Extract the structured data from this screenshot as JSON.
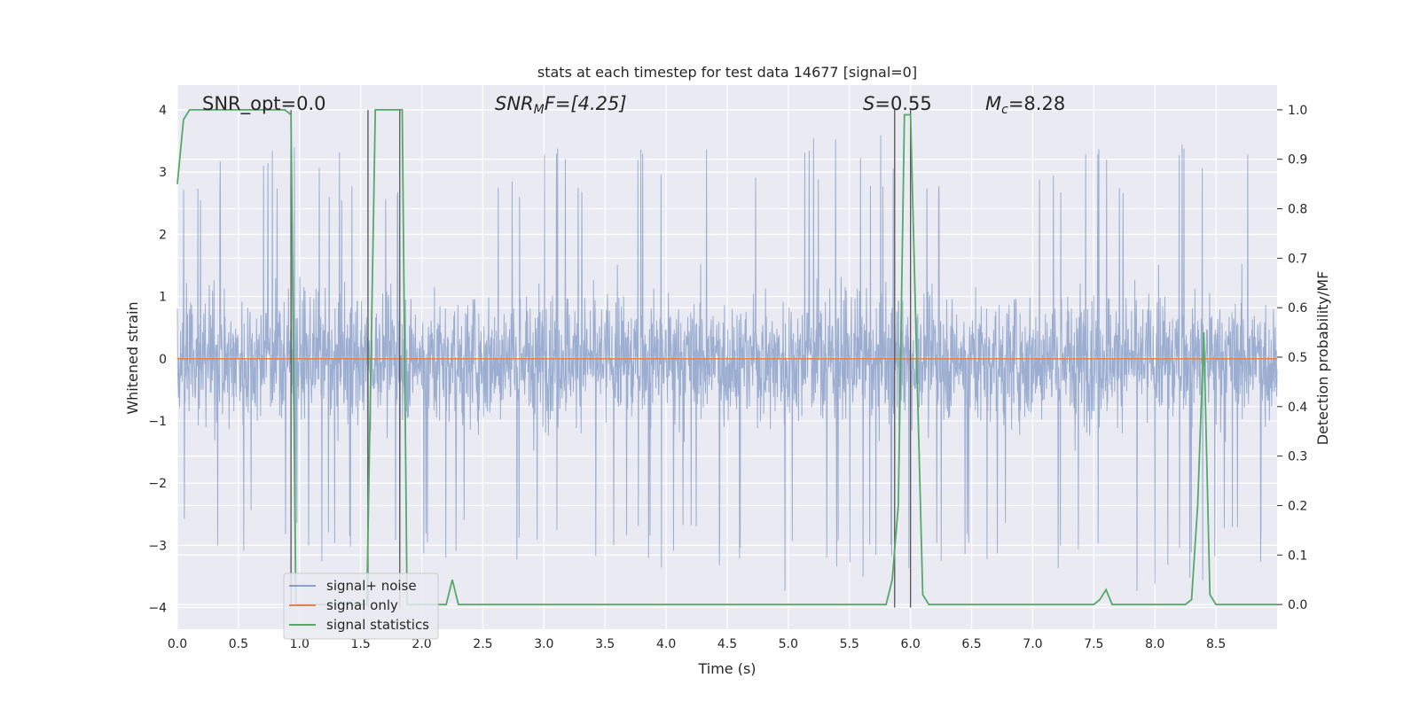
{
  "chart_data": {
    "type": "line",
    "title": "stats at each timestep for test data 14677 [signal=0]",
    "xlabel": "Time (s)",
    "ylabel": "Whitened strain",
    "ylabel_right": "Detection probability/MF",
    "xlim": [
      0.0,
      9.0
    ],
    "ylim": [
      -4.35,
      4.4
    ],
    "ylim_right": [
      -0.05,
      1.05
    ],
    "x_ticks": [
      "0.0",
      "0.5",
      "1.0",
      "1.5",
      "2.0",
      "2.5",
      "3.0",
      "3.5",
      "4.0",
      "4.5",
      "5.0",
      "5.5",
      "6.0",
      "6.5",
      "7.0",
      "7.5",
      "8.0",
      "8.5"
    ],
    "y_ticks": [
      "−4",
      "−3",
      "−2",
      "−1",
      "0",
      "1",
      "2",
      "3",
      "4"
    ],
    "y_ticks_right": [
      "0.0",
      "0.1",
      "0.2",
      "0.3",
      "0.4",
      "0.5",
      "0.6",
      "0.7",
      "0.8",
      "0.9",
      "1.0"
    ],
    "grid": true,
    "legend_position": "bottom-left",
    "annotations": {
      "snr_opt": "SNR_opt=0.0",
      "snr_mf_main": "SNR",
      "snr_mf_sub": "M",
      "snr_mf_tail": "F=[4.25]",
      "s_main": "S",
      "s_tail": "=0.55",
      "mc_main": "M",
      "mc_sub": "c",
      "mc_tail": "=8.28"
    },
    "series": [
      {
        "name": "signal+ noise",
        "axis": "left",
        "color": "#4c72b0",
        "envelope_x": [
          0.0,
          0.5,
          1.0,
          1.5,
          2.0,
          2.5,
          3.0,
          3.5,
          4.0,
          4.5,
          5.0,
          5.5,
          6.0,
          6.5,
          7.0,
          7.5,
          8.0,
          8.5,
          9.0
        ],
        "envelope_upper": [
          3.0,
          3.4,
          3.5,
          3.3,
          3.6,
          3.4,
          3.5,
          3.6,
          3.3,
          3.5,
          3.7,
          3.6,
          3.7,
          3.5,
          3.6,
          3.5,
          3.6,
          3.4,
          3.3
        ],
        "envelope_lower": [
          -3.2,
          -3.2,
          -3.3,
          -3.3,
          -3.3,
          -3.3,
          -3.3,
          -3.2,
          -3.4,
          -3.5,
          -3.9,
          -3.6,
          -3.4,
          -3.3,
          -3.4,
          -3.5,
          -3.9,
          -3.5,
          -3.4
        ]
      },
      {
        "name": "signal only",
        "axis": "left",
        "color": "#dd8452",
        "x": [
          0.0,
          9.0
        ],
        "y": [
          0.0,
          0.0
        ]
      },
      {
        "name": "signal statistics",
        "axis": "right",
        "color": "#55a868",
        "x": [
          0.0,
          0.05,
          0.1,
          0.2,
          0.5,
          0.8,
          0.88,
          0.93,
          0.97,
          1.5,
          1.55,
          1.62,
          1.8,
          1.84,
          1.88,
          2.2,
          2.25,
          2.3,
          2.4,
          3.0,
          3.9,
          4.0,
          5.4,
          5.5,
          5.8,
          5.85,
          5.9,
          5.95,
          6.0,
          6.05,
          6.1,
          6.15,
          6.3,
          7.0,
          7.5,
          7.55,
          7.6,
          7.65,
          7.7,
          8.25,
          8.3,
          8.35,
          8.4,
          8.45,
          8.5,
          9.0
        ],
        "y": [
          0.85,
          0.98,
          1.0,
          1.0,
          1.0,
          1.0,
          1.0,
          0.99,
          0.0,
          0.0,
          0.0,
          1.0,
          1.0,
          1.0,
          0.0,
          0.0,
          0.05,
          0.0,
          0.0,
          0.0,
          0.0,
          0.0,
          0.0,
          0.0,
          0.0,
          0.05,
          0.2,
          0.99,
          0.99,
          0.5,
          0.02,
          0.0,
          0.0,
          0.0,
          0.0,
          0.01,
          0.03,
          0.0,
          0.0,
          0.0,
          0.01,
          0.2,
          0.55,
          0.02,
          0.0,
          0.0
        ]
      }
    ],
    "vertical_lines_x": [
      0.93,
      1.56,
      1.82,
      5.87,
      6.0
    ],
    "colors": {
      "plot_background": "#eaeaf2",
      "grid": "#ffffff",
      "vline": "#555555",
      "text": "#262626"
    }
  }
}
